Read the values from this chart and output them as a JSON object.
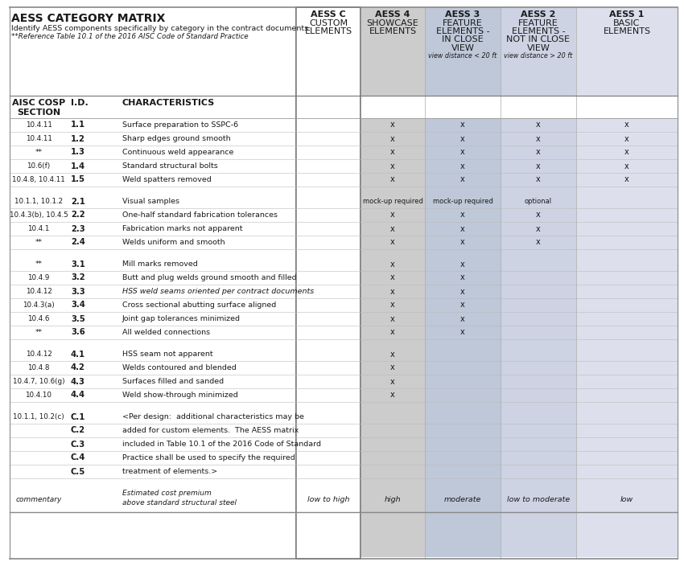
{
  "title": "AESS CATEGORY MATRIX",
  "subtitle1": "Identify AESS components specifically by category in the contract documents",
  "subtitle2": "**Reference Table 10.1 of the 2016 AISC Code of Standard Practice",
  "col_headers": [
    {
      "lines": [
        "AESS C",
        "CUSTOM",
        "ELEMENTS"
      ],
      "sub": "",
      "bg": "#ffffff",
      "border": true
    },
    {
      "lines": [
        "AESS 4",
        "SHOWCASE",
        "ELEMENTS"
      ],
      "sub": "",
      "bg": "#cccccc"
    },
    {
      "lines": [
        "AESS 3",
        "FEATURE",
        "ELEMENTS -",
        "IN CLOSE",
        "VIEW"
      ],
      "sub": "view distance < 20 ft",
      "bg": "#bec8d8"
    },
    {
      "lines": [
        "AESS 2",
        "FEATURE",
        "ELEMENTS -",
        "NOT IN CLOSE",
        "VIEW"
      ],
      "sub": "view distance > 20 ft",
      "bg": "#cdd3e3"
    },
    {
      "lines": [
        "AESS 1",
        "BASIC",
        "ELEMENTS"
      ],
      "sub": "",
      "bg": "#dde0ec"
    }
  ],
  "subhdr": [
    "AISC COSP\nSECTION",
    "I.D.",
    "CHARACTERISTICS"
  ],
  "bg_white": "#ffffff",
  "text_dark": "#1a1a1a",
  "line_thin": "#bbbbbb",
  "line_med": "#999999",
  "rows": [
    {
      "sec": "10.4.11",
      "id": "1.1",
      "char": "Surface preparation to SSPC-6",
      "cc": "",
      "c4": "x",
      "c3": "x",
      "c2": "x",
      "c1": "x"
    },
    {
      "sec": "10.4.11",
      "id": "1.2",
      "char": "Sharp edges ground smooth",
      "cc": "",
      "c4": "x",
      "c3": "x",
      "c2": "x",
      "c1": "x"
    },
    {
      "sec": "**",
      "id": "1.3",
      "char": "Continuous weld appearance",
      "cc": "",
      "c4": "x",
      "c3": "x",
      "c2": "x",
      "c1": "x"
    },
    {
      "sec": "10.6(f)",
      "id": "1.4",
      "char": "Standard structural bolts",
      "cc": "",
      "c4": "x",
      "c3": "x",
      "c2": "x",
      "c1": "x"
    },
    {
      "sec": "10.4.8, 10.4.11",
      "id": "1.5",
      "char": "Weld spatters removed",
      "cc": "",
      "c4": "x",
      "c3": "x",
      "c2": "x",
      "c1": "x"
    },
    {
      "spacer": true
    },
    {
      "sec": "10.1.1, 10.1.2",
      "id": "2.1",
      "char": "Visual samples",
      "cc": "",
      "c4": "mock-up required",
      "c3": "mock-up required",
      "c2": "optional",
      "c1": ""
    },
    {
      "sec": "10.4.3(b), 10.4.5",
      "id": "2.2",
      "char": "One-half standard fabrication tolerances",
      "cc": "",
      "c4": "x",
      "c3": "x",
      "c2": "x",
      "c1": ""
    },
    {
      "sec": "10.4.1",
      "id": "2.3",
      "char": "Fabrication marks not apparent",
      "cc": "",
      "c4": "x",
      "c3": "x",
      "c2": "x",
      "c1": ""
    },
    {
      "sec": "**",
      "id": "2.4",
      "char": "Welds uniform and smooth",
      "cc": "",
      "c4": "x",
      "c3": "x",
      "c2": "x",
      "c1": ""
    },
    {
      "spacer": true
    },
    {
      "sec": "**",
      "id": "3.1",
      "char": "Mill marks removed",
      "cc": "",
      "c4": "x",
      "c3": "x",
      "c2": "",
      "c1": ""
    },
    {
      "sec": "10.4.9",
      "id": "3.2",
      "char": "Butt and plug welds ground smooth and filled",
      "cc": "",
      "c4": "x",
      "c3": "x",
      "c2": "",
      "c1": ""
    },
    {
      "sec": "10.4.12",
      "id": "3.3",
      "char": "HSS weld seams oriented per contract documents",
      "cc": "",
      "c4": "x",
      "c3": "x",
      "c2": "",
      "c1": "",
      "char_italic": true
    },
    {
      "sec": "10.4.3(a)",
      "id": "3.4",
      "char": "Cross sectional abutting surface aligned",
      "cc": "",
      "c4": "x",
      "c3": "x",
      "c2": "",
      "c1": ""
    },
    {
      "sec": "10.4.6",
      "id": "3.5",
      "char": "Joint gap tolerances minimized",
      "cc": "",
      "c4": "x",
      "c3": "x",
      "c2": "",
      "c1": ""
    },
    {
      "sec": "**",
      "id": "3.6",
      "char": "All welded connections",
      "cc": "",
      "c4": "x",
      "c3": "x",
      "c2": "",
      "c1": ""
    },
    {
      "spacer": true
    },
    {
      "sec": "10.4.12",
      "id": "4.1",
      "char": "HSS seam not apparent",
      "cc": "",
      "c4": "x",
      "c3": "",
      "c2": "",
      "c1": ""
    },
    {
      "sec": "10.4.8",
      "id": "4.2",
      "char": "Welds contoured and blended",
      "cc": "",
      "c4": "x",
      "c3": "",
      "c2": "",
      "c1": ""
    },
    {
      "sec": "10.4.7, 10.6(g)",
      "id": "4.3",
      "char": "Surfaces filled and sanded",
      "cc": "",
      "c4": "x",
      "c3": "",
      "c2": "",
      "c1": ""
    },
    {
      "sec": "10.4.10",
      "id": "4.4",
      "char": "Weld show-through minimized",
      "cc": "",
      "c4": "x",
      "c3": "",
      "c2": "",
      "c1": ""
    },
    {
      "spacer": true
    },
    {
      "sec": "10.1.1, 10.2(c)",
      "id": "C.1",
      "char": "<Per design:  additional characteristics may be",
      "cc": "",
      "c4": "",
      "c3": "",
      "c2": "",
      "c1": ""
    },
    {
      "sec": "",
      "id": "C.2",
      "char": "added for custom elements.  The AESS matrix",
      "cc": "",
      "c4": "",
      "c3": "",
      "c2": "",
      "c1": ""
    },
    {
      "sec": "",
      "id": "C.3",
      "char": "included in Table 10.1 of the 2016 Code of Standard",
      "cc": "",
      "c4": "",
      "c3": "",
      "c2": "",
      "c1": ""
    },
    {
      "sec": "",
      "id": "C.4",
      "char": "Practice shall be used to specify the required",
      "cc": "",
      "c4": "",
      "c3": "",
      "c2": "",
      "c1": ""
    },
    {
      "sec": "",
      "id": "C.5",
      "char": "treatment of elements.>",
      "cc": "",
      "c4": "",
      "c3": "",
      "c2": "",
      "c1": ""
    },
    {
      "spacer": true
    },
    {
      "sec": "commentary",
      "id": "",
      "char": "Estimated cost premium\nabove standard structural steel",
      "cc": "low to high",
      "c4": "high",
      "c3": "moderate",
      "c2": "low to moderate",
      "c1": "low",
      "footer": true
    }
  ]
}
